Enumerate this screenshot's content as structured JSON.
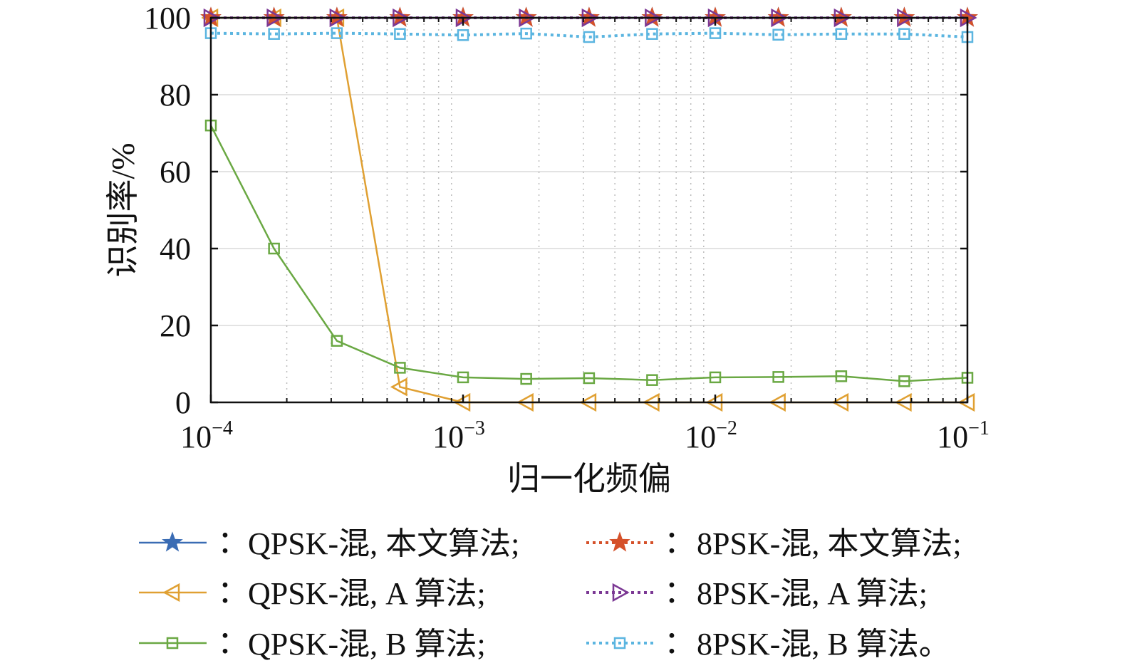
{
  "chart_data": {
    "type": "line",
    "title": "",
    "xlabel": "归一化频偏",
    "ylabel": "识别率/%",
    "xscale": "log",
    "xlim": [
      0.0001,
      0.1
    ],
    "ylim": [
      0,
      100
    ],
    "grid": true,
    "xticks": [
      {
        "base": "10",
        "exp": "−4"
      },
      {
        "base": "10",
        "exp": "−3"
      },
      {
        "base": "10",
        "exp": "−2"
      },
      {
        "base": "10",
        "exp": "−1"
      }
    ],
    "yticks": [
      "0",
      "20",
      "40",
      "60",
      "80",
      "100"
    ],
    "x": [
      0.0001,
      0.000178,
      0.000316,
      0.000562,
      0.001,
      0.00178,
      0.00316,
      0.00562,
      0.01,
      0.0178,
      0.0316,
      0.0562,
      0.1
    ],
    "legend_position": "bottom",
    "series": [
      {
        "name": "QPSK-混, 本文算法;",
        "color": "#3a6cb4",
        "marker": "star",
        "dash": false,
        "values": [
          100,
          100,
          100,
          100,
          100,
          100,
          100,
          100,
          100,
          100,
          100,
          100,
          100
        ]
      },
      {
        "name": "QPSK-混, A 算法;",
        "color": "#e0a032",
        "marker": "triangle-left",
        "dash": false,
        "values": [
          100,
          100,
          100,
          4,
          0,
          0,
          0,
          0,
          0,
          0,
          0,
          0,
          0
        ]
      },
      {
        "name": "QPSK-混, B 算法;",
        "color": "#6aa843",
        "marker": "square",
        "dash": false,
        "values": [
          72,
          40,
          16,
          9,
          6.5,
          6.1,
          6.3,
          5.8,
          6.5,
          6.6,
          6.8,
          5.5,
          6.4
        ]
      },
      {
        "name": "8PSK-混, 本文算法;",
        "color": "#d5512a",
        "marker": "star",
        "dash": true,
        "values": [
          100,
          100,
          100,
          100,
          100,
          100,
          100,
          100,
          100,
          100,
          100,
          100,
          100
        ]
      },
      {
        "name": "8PSK-混, A 算法;",
        "color": "#7b3894",
        "marker": "triangle-right",
        "dash": true,
        "values": [
          100,
          100,
          100,
          100,
          100,
          100,
          100,
          100,
          100,
          100,
          100,
          100,
          100
        ]
      },
      {
        "name": "8PSK-混, B 算法。",
        "color": "#5bb5e0",
        "marker": "square",
        "dash": true,
        "values": [
          96,
          95.8,
          96,
          95.8,
          95.5,
          95.9,
          95,
          95.8,
          96,
          95.6,
          95.8,
          95.8,
          95
        ]
      }
    ],
    "legend_sep": "："
  }
}
